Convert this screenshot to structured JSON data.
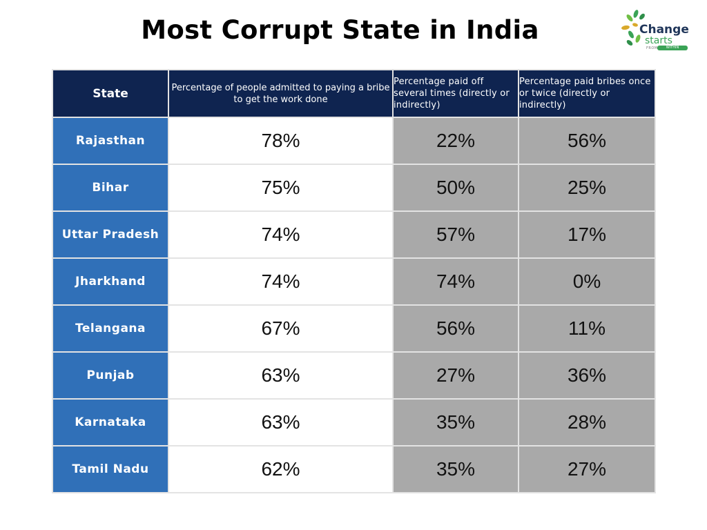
{
  "title": "Most Corrupt State in India",
  "logo": {
    "line1": "Change",
    "line2": "starts",
    "line3": "FROM",
    "line4": "WITHIN"
  },
  "colors": {
    "header_bg": "#0f2450",
    "state_bg": "#3070b8",
    "grey_cell": "#a9a9a9",
    "logo_navy": "#1f3559",
    "logo_green": "#3aa356",
    "logo_gold": "#d9a92b"
  },
  "chart_data": {
    "type": "table",
    "columns": [
      "State",
      "Percentage of people admitted to paying a bribe to get the work done",
      "Percentage paid off several times (directly or indirectly)",
      "Percentage paid bribes once or twice (directly or indirectly)"
    ],
    "rows": [
      {
        "state": "Rajasthan",
        "admitted": "78%",
        "several_times": "22%",
        "once_or_twice": "56%"
      },
      {
        "state": "Bihar",
        "admitted": "75%",
        "several_times": "50%",
        "once_or_twice": "25%"
      },
      {
        "state": "Uttar Pradesh",
        "admitted": "74%",
        "several_times": "57%",
        "once_or_twice": "17%"
      },
      {
        "state": "Jharkhand",
        "admitted": "74%",
        "several_times": "74%",
        "once_or_twice": "0%"
      },
      {
        "state": "Telangana",
        "admitted": "67%",
        "several_times": "56%",
        "once_or_twice": "11%"
      },
      {
        "state": "Punjab",
        "admitted": "63%",
        "several_times": "27%",
        "once_or_twice": "36%"
      },
      {
        "state": "Karnataka",
        "admitted": "63%",
        "several_times": "35%",
        "once_or_twice": "28%"
      },
      {
        "state": "Tamil Nadu",
        "admitted": "62%",
        "several_times": "35%",
        "once_or_twice": "27%"
      }
    ]
  }
}
